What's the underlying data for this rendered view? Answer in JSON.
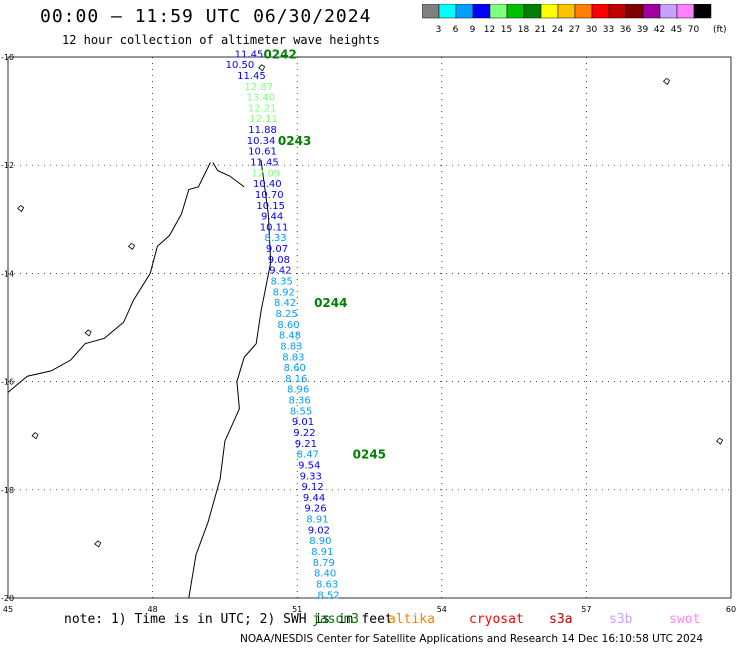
{
  "title": "00:00 – 11:59 UTC 06/30/2024",
  "subtitle": "12 hour collection of altimeter wave heights",
  "legend": {
    "unit": "(ft)",
    "bins": [
      {
        "label": "3",
        "color": "#808080"
      },
      {
        "label": "6",
        "color": "#00ffff"
      },
      {
        "label": "9",
        "color": "#00a0ff"
      },
      {
        "label": "12",
        "color": "#0000ff"
      },
      {
        "label": "15",
        "color": "#7fff7f"
      },
      {
        "label": "18",
        "color": "#00c000"
      },
      {
        "label": "21",
        "color": "#008000"
      },
      {
        "label": "24",
        "color": "#ffff00"
      },
      {
        "label": "27",
        "color": "#ffc000"
      },
      {
        "label": "30",
        "color": "#ff8000"
      },
      {
        "label": "33",
        "color": "#ff0000"
      },
      {
        "label": "36",
        "color": "#c00000"
      },
      {
        "label": "39",
        "color": "#800000"
      },
      {
        "label": "42",
        "color": "#a000a0"
      },
      {
        "label": "45",
        "color": "#c8a0ff"
      },
      {
        "label": "70",
        "color": "#ff80ff"
      },
      {
        "label": "",
        "color": "#000000"
      }
    ]
  },
  "axes": {
    "lon_ticks": [
      "45",
      "48",
      "51",
      "54",
      "57",
      "60"
    ],
    "lat_ticks": [
      "-10",
      "-12",
      "-14",
      "-16",
      "-18",
      "-20"
    ]
  },
  "map_view": {
    "lon_min": 45,
    "lon_max": 60,
    "lat_min": -20,
    "lat_max": -10
  },
  "time_labels": [
    "0242",
    "0243",
    "0244",
    "0245"
  ],
  "track": [
    {
      "v": "11.45",
      "lon": 50.0,
      "lat": -9.95
    },
    {
      "v": "10.50",
      "lon": 50.02,
      "lat": -10.15
    },
    {
      "v": "11.45",
      "lon": 50.05,
      "lat": -10.35
    },
    {
      "v": "12.87",
      "lon": 50.08,
      "lat": -10.55
    },
    {
      "v": "13.40",
      "lon": 50.12,
      "lat": -10.75
    },
    {
      "v": "12.21",
      "lon": 50.15,
      "lat": -10.95
    },
    {
      "v": "12.11",
      "lon": 50.18,
      "lat": -11.15
    },
    {
      "v": "11.88",
      "lon": 50.22,
      "lat": -11.35
    },
    {
      "v": "10.34",
      "lon": 50.25,
      "lat": -11.55
    },
    {
      "v": "10.61",
      "lon": 50.28,
      "lat": -11.75
    },
    {
      "v": "11.45",
      "lon": 50.32,
      "lat": -11.95
    },
    {
      "v": "12.09",
      "lon": 50.35,
      "lat": -12.15
    },
    {
      "v": "10.40",
      "lon": 50.38,
      "lat": -12.35
    },
    {
      "v": "10.70",
      "lon": 50.42,
      "lat": -12.55
    },
    {
      "v": "10.15",
      "lon": 50.45,
      "lat": -12.75
    },
    {
      "v": "9.44",
      "lon": 50.48,
      "lat": -12.95
    },
    {
      "v": "10.11",
      "lon": 50.52,
      "lat": -13.15
    },
    {
      "v": "8.33",
      "lon": 50.55,
      "lat": -13.35
    },
    {
      "v": "9.07",
      "lon": 50.58,
      "lat": -13.55
    },
    {
      "v": "9.08",
      "lon": 50.62,
      "lat": -13.75
    },
    {
      "v": "9.42",
      "lon": 50.65,
      "lat": -13.95
    },
    {
      "v": "8.35",
      "lon": 50.68,
      "lat": -14.15
    },
    {
      "v": "8.92",
      "lon": 50.72,
      "lat": -14.35
    },
    {
      "v": "8.42",
      "lon": 50.75,
      "lat": -14.55
    },
    {
      "v": "8.25",
      "lon": 50.78,
      "lat": -14.75
    },
    {
      "v": "8.60",
      "lon": 50.82,
      "lat": -14.95
    },
    {
      "v": "8.48",
      "lon": 50.85,
      "lat": -15.15
    },
    {
      "v": "8.83",
      "lon": 50.88,
      "lat": -15.35
    },
    {
      "v": "8.83",
      "lon": 50.92,
      "lat": -15.55
    },
    {
      "v": "8.60",
      "lon": 50.95,
      "lat": -15.75
    },
    {
      "v": "8.16",
      "lon": 50.98,
      "lat": -15.95
    },
    {
      "v": "8.96",
      "lon": 51.02,
      "lat": -16.15
    },
    {
      "v": "8.36",
      "lon": 51.05,
      "lat": -16.35
    },
    {
      "v": "8.55",
      "lon": 51.08,
      "lat": -16.55
    },
    {
      "v": "9.01",
      "lon": 51.12,
      "lat": -16.75
    },
    {
      "v": "9.22",
      "lon": 51.15,
      "lat": -16.95
    },
    {
      "v": "9.21",
      "lon": 51.18,
      "lat": -17.15
    },
    {
      "v": "8.47",
      "lon": 51.22,
      "lat": -17.35
    },
    {
      "v": "9.54",
      "lon": 51.25,
      "lat": -17.55
    },
    {
      "v": "9.33",
      "lon": 51.28,
      "lat": -17.75
    },
    {
      "v": "9.12",
      "lon": 51.32,
      "lat": -17.95
    },
    {
      "v": "9.44",
      "lon": 51.35,
      "lat": -18.15
    },
    {
      "v": "9.26",
      "lon": 51.38,
      "lat": -18.35
    },
    {
      "v": "8.91",
      "lon": 51.42,
      "lat": -18.55
    },
    {
      "v": "9.02",
      "lon": 51.45,
      "lat": -18.75
    },
    {
      "v": "8.90",
      "lon": 51.48,
      "lat": -18.95
    },
    {
      "v": "8.91",
      "lon": 51.52,
      "lat": -19.15
    },
    {
      "v": "8.79",
      "lon": 51.55,
      "lat": -19.35
    },
    {
      "v": "8.40",
      "lon": 51.58,
      "lat": -19.55
    },
    {
      "v": "8.63",
      "lon": 51.62,
      "lat": -19.75
    },
    {
      "v": "8.52",
      "lon": 51.65,
      "lat": -19.95
    }
  ],
  "note": {
    "text": "note: 1) Time is in UTC; 2) SWH is in feet",
    "satellites": [
      {
        "name": "jason3",
        "color": "#008000"
      },
      {
        "name": "altika",
        "color": "#ff8000"
      },
      {
        "name": "cryosat",
        "color": "#ff0000"
      },
      {
        "name": "s3a",
        "color": "#c00000"
      },
      {
        "name": "s3b",
        "color": "#c8a0ff"
      },
      {
        "name": "swot",
        "color": "#ff80ff"
      }
    ]
  },
  "footer": "NOAA/NESDIS Center for Satellite Applications and Research    14 Dec 16:10:58 UTC 2024"
}
